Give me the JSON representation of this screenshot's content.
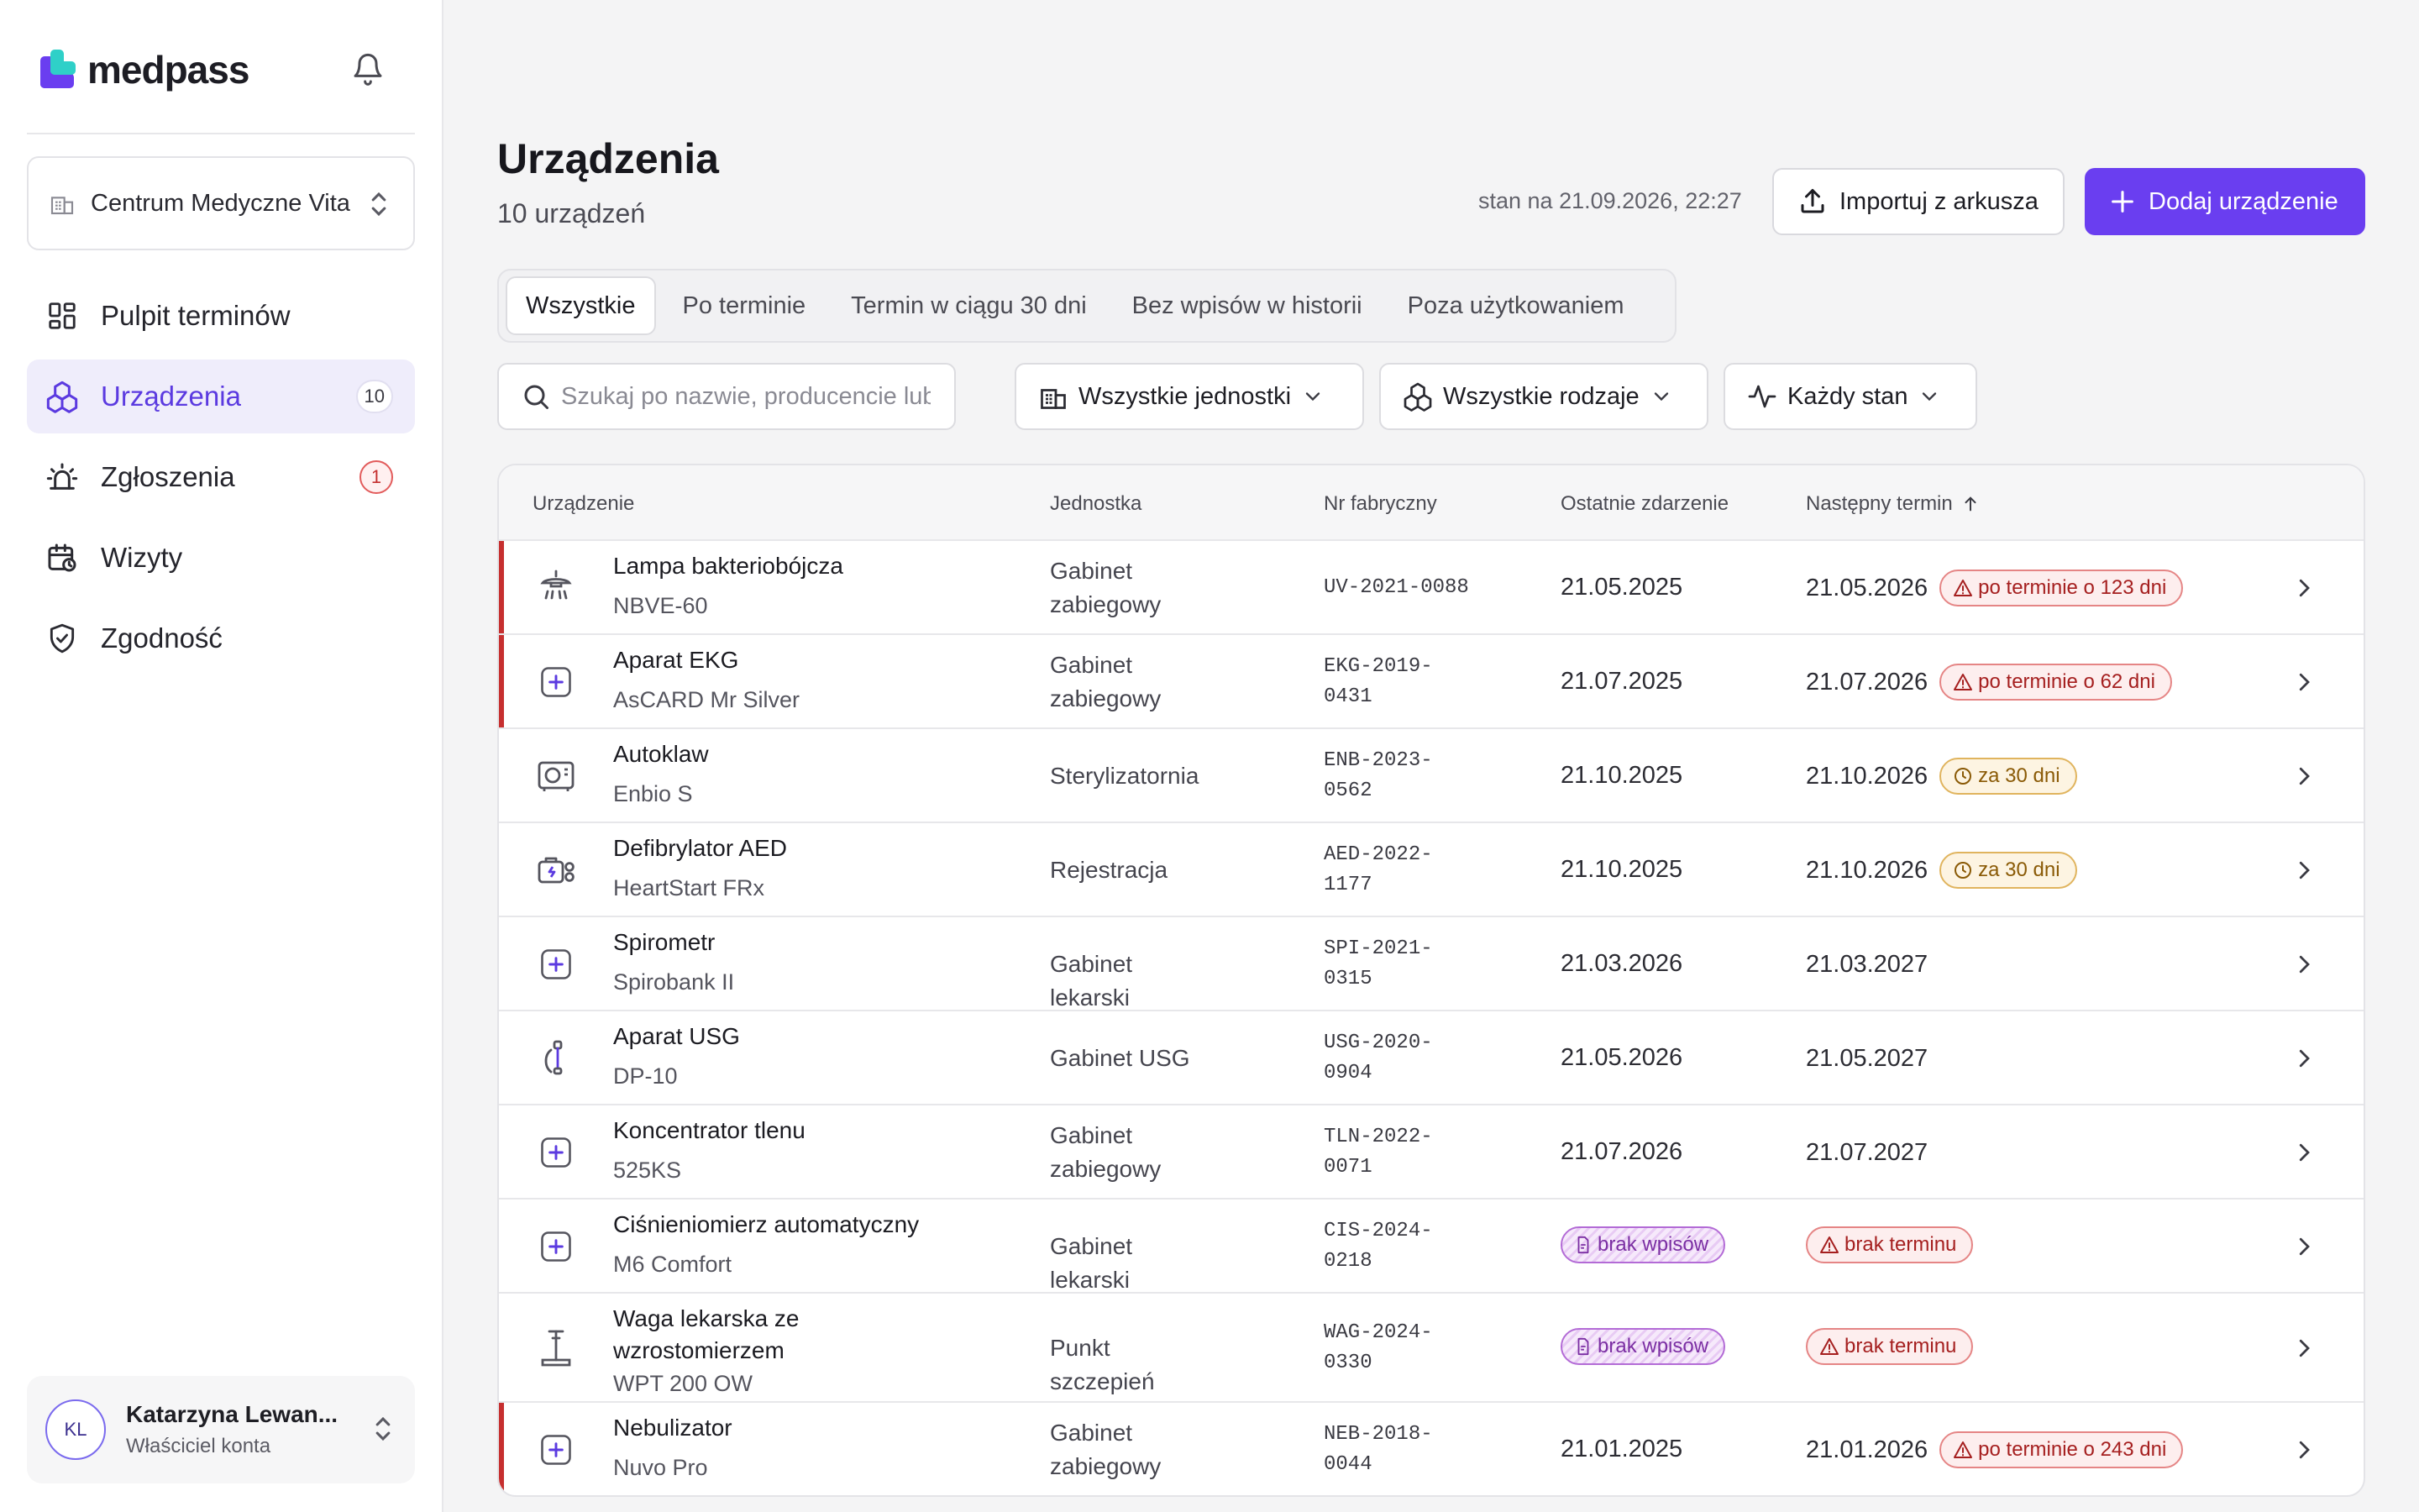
{
  "app": {
    "brand": "medpass"
  },
  "org": {
    "name": "Centrum Medyczne Vita"
  },
  "nav": [
    {
      "label": "Pulpit terminów",
      "icon": "dashboard-icon"
    },
    {
      "label": "Urządzenia",
      "icon": "devices-icon",
      "badge": "10",
      "active": true
    },
    {
      "label": "Zgłoszenia",
      "icon": "alarm-icon",
      "badge": "1"
    },
    {
      "label": "Wizyty",
      "icon": "calendar-icon"
    },
    {
      "label": "Zgodność",
      "icon": "shield-icon"
    }
  ],
  "user": {
    "initials": "KL",
    "name": "Katarzyna Lewan...",
    "role": "Właściciel konta"
  },
  "page": {
    "title": "Urządzenia",
    "subtitle": "10 urządzeń",
    "status": "stan na 21.09.2026, 22:27",
    "import_label": "Importuj z arkusza",
    "add_label": "Dodaj urządzenie"
  },
  "tabs": [
    "Wszystkie",
    "Po terminie",
    "Termin w ciągu 30 dni",
    "Bez wpisów w historii",
    "Poza użytkowaniem"
  ],
  "filters": {
    "search_placeholder": "Szukaj po nazwie, producencie lub",
    "unit": "Wszystkie jednostki",
    "kind": "Wszystkie rodzaje",
    "state": "Każdy stan"
  },
  "table": {
    "headers": [
      "Urządzenie",
      "Jednostka",
      "Nr fabryczny",
      "Ostatnie zdarzenie",
      "Następny termin"
    ],
    "rows": [
      {
        "name": "Lampa bakteriobójcza",
        "model": "NBVE-60",
        "unit1": "Gabinet",
        "unit2": "zabiegowy",
        "serial1": "UV-2021-0088",
        "serial2": "",
        "last": "21.05.2025",
        "next": "21.05.2026",
        "badge": "po terminie o 123 dni",
        "badge_type": "red",
        "icon": "lamp-icon"
      },
      {
        "name": "Aparat EKG",
        "model": "AsCARD Mr Silver",
        "unit1": "Gabinet",
        "unit2": "zabiegowy",
        "serial1": "EKG-2019-",
        "serial2": "0431",
        "last": "21.07.2025",
        "next": "21.07.2026",
        "badge": "po terminie o 62 dni",
        "badge_type": "red",
        "icon": "plus-box-icon"
      },
      {
        "name": "Autoklaw",
        "model": "Enbio S",
        "unit1": "Sterylizatornia",
        "unit2": "",
        "serial1": "ENB-2023-",
        "serial2": "0562",
        "last": "21.10.2025",
        "next": "21.10.2026",
        "badge": "za 30 dni",
        "badge_type": "amber",
        "icon": "autoclave-icon"
      },
      {
        "name": "Defibrylator AED",
        "model": "HeartStart FRx",
        "unit1": "Rejestracja",
        "unit2": "",
        "serial1": "AED-2022-",
        "serial2": "1177",
        "last": "21.10.2025",
        "next": "21.10.2026",
        "badge": "za 30 dni",
        "badge_type": "amber",
        "icon": "defibrillator-icon"
      },
      {
        "name": "Spirometr",
        "model": "Spirobank II",
        "unit1": "Gabinet lekarski",
        "unit2": "",
        "serial1": "SPI-2021-",
        "serial2": "0315",
        "last": "21.03.2026",
        "next": "21.03.2027",
        "badge": "",
        "badge_type": "",
        "icon": "plus-box-icon"
      },
      {
        "name": "Aparat USG",
        "model": "DP-10",
        "unit1": "Gabinet USG",
        "unit2": "",
        "serial1": "USG-2020-",
        "serial2": "0904",
        "last": "21.05.2026",
        "next": "21.05.2027",
        "badge": "",
        "badge_type": "",
        "icon": "ultrasound-icon"
      },
      {
        "name": "Koncentrator tlenu",
        "model": "525KS",
        "unit1": "Gabinet",
        "unit2": "zabiegowy",
        "serial1": "TLN-2022-",
        "serial2": "0071",
        "last": "21.07.2026",
        "next": "21.07.2027",
        "badge": "",
        "badge_type": "",
        "icon": "plus-box-icon"
      },
      {
        "name": "Ciśnieniomierz automatyczny",
        "model": "M6 Comfort",
        "unit1": "Gabinet lekarski",
        "unit2": "",
        "serial1": "CIS-2024-",
        "serial2": "0218",
        "last_badge": "brak wpisów",
        "next_badge": "brak terminu",
        "icon": "plus-box-icon"
      },
      {
        "name": "Waga lekarska ze",
        "name2": "wzrostomierzem",
        "model": "WPT 200 OW",
        "unit1": "Punkt szczepień",
        "unit2": "",
        "serial1": "WAG-2024-",
        "serial2": "0330",
        "last_badge": "brak wpisów",
        "next_badge": "brak terminu",
        "icon": "scale-icon"
      },
      {
        "name": "Nebulizator",
        "model": "Nuvo Pro",
        "unit1": "Gabinet",
        "unit2": "zabiegowy",
        "serial1": "NEB-2018-",
        "serial2": "0044",
        "last": "21.01.2025",
        "next": "21.01.2026",
        "badge": "po terminie o 243 dni",
        "badge_type": "red",
        "icon": "plus-box-icon"
      }
    ]
  },
  "colors": {
    "accent": "#6a3ef0",
    "overdue": "#c62f2f",
    "warning": "#e0b45e",
    "nodata": "#b36bd6"
  }
}
